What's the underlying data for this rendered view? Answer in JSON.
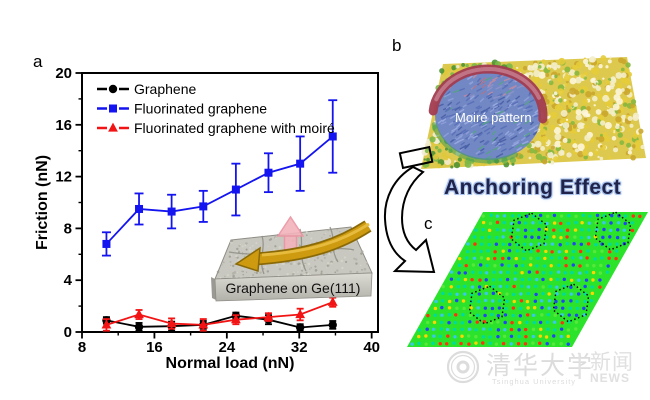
{
  "figure": {
    "panel_labels": {
      "a": "a",
      "b": "b",
      "c": "c"
    }
  },
  "chart_data": {
    "type": "line",
    "title": "",
    "xlabel": "Normal load (nN)",
    "ylabel": "Friction (nN)",
    "xlim": [
      8,
      40.7
    ],
    "ylim": [
      0,
      20
    ],
    "x_major_ticks": [
      8,
      16,
      24,
      32,
      40
    ],
    "x_minor_ticks": [
      12,
      20,
      28,
      36
    ],
    "y_major_ticks": [
      0,
      4,
      8,
      12,
      16,
      20
    ],
    "y_minor_ticks": [
      2,
      6,
      10,
      14,
      18
    ],
    "grid": false,
    "legend_position": "top-left",
    "x": [
      10.7,
      14.3,
      17.9,
      21.4,
      25.0,
      28.6,
      32.1,
      35.7
    ],
    "series": [
      {
        "name": "Graphene",
        "marker": "circle",
        "color": "#000000",
        "values": [
          0.9,
          0.4,
          0.45,
          0.55,
          1.25,
          0.95,
          0.35,
          0.55
        ],
        "errors": [
          0.25,
          0.3,
          0.35,
          0.3,
          0.25,
          0.35,
          0.25,
          0.3
        ]
      },
      {
        "name": "Fluorinated graphene",
        "marker": "square",
        "color": "#1414f0",
        "values": [
          6.8,
          9.5,
          9.3,
          9.7,
          11.0,
          12.3,
          13.0,
          15.1
        ],
        "errors": [
          0.9,
          1.2,
          1.3,
          1.2,
          2.0,
          1.5,
          2.1,
          2.8
        ]
      },
      {
        "name": "Fluorinated graphene with moiré",
        "marker": "triangle",
        "color": "#f21414",
        "values": [
          0.55,
          1.35,
          0.65,
          0.55,
          0.95,
          1.15,
          1.35,
          2.3
        ],
        "errors": [
          0.45,
          0.35,
          0.4,
          0.45,
          0.35,
          0.3,
          0.45,
          0.35
        ]
      }
    ]
  },
  "inset": {
    "caption": "Graphene on Ge(111)"
  },
  "panel_b": {
    "label": "Moiré pattern"
  },
  "anchoring": {
    "text": "Anchoring Effect"
  },
  "watermark": {
    "university_cn": "清华大学",
    "university_en": "Tsinghua University",
    "divider": "|",
    "news_cn": "新闻",
    "news_en": "NEWS"
  },
  "colors": {
    "series_black": "#000000",
    "series_blue": "#1414f0",
    "series_red": "#f21414",
    "panel_c_green": "#2be32b",
    "anchoring_text": "#20244a",
    "anchoring_glow": "#a9c3ee",
    "watermark_gray": "#dcdcdc"
  }
}
